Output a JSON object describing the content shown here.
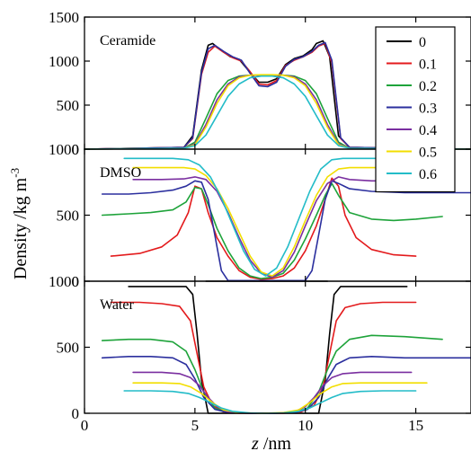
{
  "chart_data": {
    "type": "line",
    "xlabel_italic": "z",
    "xlabel_unit": " /nm",
    "ylabel": "Density /kg m",
    "ylabel_sup": "-3",
    "xlim": [
      0,
      17.5
    ],
    "xticks": [
      0,
      5,
      10,
      15
    ],
    "grid": false,
    "legend_position": "top-right",
    "legend": [
      {
        "label": "0",
        "color": "#000000"
      },
      {
        "label": "0.1",
        "color": "#e31a1c"
      },
      {
        "label": "0.2",
        "color": "#1ea33a"
      },
      {
        "label": "0.3",
        "color": "#2b2f9e"
      },
      {
        "label": "0.4",
        "color": "#7a2fa0"
      },
      {
        "label": "0.5",
        "color": "#f2de00"
      },
      {
        "label": "0.6",
        "color": "#23bcc8"
      }
    ],
    "panels": [
      {
        "label": "Ceramide",
        "ylim": [
          0,
          1500
        ],
        "yticks": [
          0,
          500,
          1000,
          1500
        ],
        "series": [
          {
            "name": "0",
            "x": [
              0,
              4.5,
              4.9,
              5.3,
              5.6,
              5.8,
              6.2,
              6.6,
              7.0,
              7.5,
              7.9,
              8.3,
              8.7,
              9.1,
              9.5,
              9.9,
              10.3,
              10.5,
              10.8,
              11.1,
              11.5,
              12.0,
              17.5
            ],
            "y": [
              0,
              20,
              150,
              900,
              1180,
              1200,
              1120,
              1050,
              1020,
              870,
              760,
              760,
              800,
              960,
              1030,
              1060,
              1130,
              1200,
              1230,
              1050,
              150,
              20,
              0
            ]
          },
          {
            "name": "0.1",
            "x": [
              0,
              4.5,
              4.9,
              5.3,
              5.6,
              5.9,
              6.3,
              6.7,
              7.1,
              7.5,
              7.9,
              8.3,
              8.7,
              9.1,
              9.5,
              9.9,
              10.3,
              10.6,
              10.9,
              11.2,
              11.6,
              12.0,
              17.5
            ],
            "y": [
              0,
              20,
              120,
              850,
              1100,
              1170,
              1100,
              1040,
              1000,
              880,
              740,
              730,
              780,
              950,
              1010,
              1050,
              1100,
              1170,
              1200,
              980,
              120,
              20,
              0
            ]
          },
          {
            "name": "0.2",
            "x": [
              0,
              4.5,
              5.0,
              5.5,
              6.0,
              6.5,
              7.0,
              7.5,
              8.0,
              8.5,
              9.0,
              9.5,
              10.0,
              10.5,
              11.0,
              11.5,
              12.0,
              17.5
            ],
            "y": [
              0,
              10,
              80,
              350,
              630,
              780,
              830,
              840,
              840,
              840,
              840,
              830,
              780,
              630,
              350,
              80,
              10,
              0
            ]
          },
          {
            "name": "0.3",
            "x": [
              0,
              4.5,
              4.9,
              5.3,
              5.6,
              5.9,
              6.3,
              6.7,
              7.1,
              7.5,
              7.9,
              8.3,
              8.7,
              9.1,
              9.5,
              9.9,
              10.3,
              10.6,
              10.9,
              11.2,
              11.6,
              12.0,
              17.5
            ],
            "y": [
              0,
              20,
              130,
              870,
              1140,
              1180,
              1110,
              1050,
              1010,
              860,
              720,
              710,
              760,
              940,
              1020,
              1050,
              1110,
              1180,
              1210,
              1010,
              130,
              20,
              0
            ]
          },
          {
            "name": "0.4",
            "x": [
              0,
              4.5,
              5.0,
              5.5,
              6.0,
              6.5,
              7.0,
              7.5,
              8.0,
              8.5,
              9.0,
              9.5,
              10.0,
              10.5,
              11.0,
              11.5,
              12.0,
              17.5
            ],
            "y": [
              0,
              10,
              60,
              280,
              560,
              740,
              820,
              840,
              840,
              840,
              840,
              820,
              740,
              560,
              280,
              60,
              10,
              0
            ]
          },
          {
            "name": "0.5",
            "x": [
              0,
              4.5,
              5.0,
              5.5,
              6.0,
              6.5,
              7.0,
              7.5,
              8.0,
              8.5,
              9.0,
              9.5,
              10.0,
              10.5,
              11.0,
              11.5,
              12.0,
              17.5
            ],
            "y": [
              0,
              10,
              50,
              250,
              520,
              720,
              810,
              840,
              845,
              845,
              840,
              810,
              720,
              520,
              250,
              50,
              10,
              0
            ]
          },
          {
            "name": "0.6",
            "x": [
              0,
              4.5,
              5.0,
              5.5,
              6.0,
              6.5,
              7.0,
              7.5,
              8.0,
              8.5,
              9.0,
              9.5,
              10.0,
              10.5,
              11.0,
              11.5,
              12.0,
              17.5
            ],
            "y": [
              0,
              10,
              40,
              160,
              380,
              600,
              740,
              810,
              830,
              830,
              810,
              740,
              600,
              380,
              160,
              40,
              10,
              0
            ]
          }
        ]
      },
      {
        "label": "DMSO",
        "ylim": [
          0,
          1000
        ],
        "yticks": [
          0,
          500,
          1000
        ],
        "series": [
          {
            "name": "0",
            "x": [
              5.5,
              11.0
            ],
            "y": [
              0,
              0
            ]
          },
          {
            "name": "0.1",
            "x": [
              1.2,
              2.5,
              3.5,
              4.2,
              4.7,
              5.0,
              5.3,
              5.6,
              6.0,
              6.5,
              7.0,
              7.5,
              8.0,
              8.5,
              9.0,
              9.5,
              10.0,
              10.5,
              10.9,
              11.2,
              11.5,
              11.8,
              12.3,
              13.0,
              14.0,
              15.0
            ],
            "y": [
              190,
              210,
              260,
              350,
              520,
              720,
              700,
              520,
              330,
              190,
              80,
              30,
              15,
              20,
              40,
              100,
              230,
              420,
              620,
              780,
              720,
              500,
              330,
              240,
              200,
              190
            ]
          },
          {
            "name": "0.2",
            "x": [
              0.8,
              2.0,
              3.0,
              4.0,
              4.6,
              5.0,
              5.3,
              5.6,
              6.0,
              6.5,
              7.0,
              7.5,
              8.0,
              8.5,
              9.0,
              9.5,
              10.0,
              10.5,
              10.9,
              11.2,
              11.5,
              12.0,
              13.0,
              14.0,
              15.0,
              16.2
            ],
            "y": [
              500,
              510,
              520,
              540,
              600,
              710,
              700,
              580,
              400,
              230,
              100,
              40,
              20,
              30,
              60,
              160,
              320,
              500,
              650,
              740,
              650,
              520,
              470,
              460,
              470,
              490
            ]
          },
          {
            "name": "0.3",
            "x": [
              0.8,
              2.0,
              3.0,
              4.0,
              4.6,
              5.0,
              5.3,
              5.6,
              5.9,
              6.2,
              6.5,
              10.0,
              10.3,
              10.6,
              10.9,
              11.2,
              11.5,
              12.0,
              13.0,
              14.5,
              16.0,
              17.5
            ],
            "y": [
              660,
              660,
              670,
              690,
              720,
              760,
              750,
              620,
              350,
              80,
              5,
              5,
              80,
              350,
              620,
              760,
              740,
              700,
              680,
              670,
              670,
              670
            ]
          },
          {
            "name": "0.4",
            "x": [
              2.2,
              3.5,
              4.5,
              5.0,
              5.5,
              6.0,
              6.5,
              7.0,
              7.5,
              8.0,
              8.5,
              9.0,
              9.5,
              10.0,
              10.5,
              11.0,
              11.5,
              12.0,
              13.0,
              14.8
            ],
            "y": [
              770,
              770,
              775,
              790,
              770,
              680,
              520,
              330,
              160,
              60,
              30,
              80,
              220,
              420,
              610,
              740,
              790,
              770,
              760,
              760
            ]
          },
          {
            "name": "0.5",
            "x": [
              2.2,
              3.5,
              4.5,
              5.0,
              5.5,
              6.0,
              6.5,
              7.0,
              7.5,
              8.0,
              8.5,
              9.0,
              9.5,
              10.0,
              10.5,
              11.0,
              11.5,
              12.0,
              13.0,
              15.5
            ],
            "y": [
              860,
              860,
              860,
              850,
              800,
              700,
              550,
              370,
              190,
              70,
              40,
              100,
              260,
              460,
              650,
              790,
              850,
              860,
              860,
              860
            ]
          },
          {
            "name": "0.6",
            "x": [
              1.8,
              3.0,
              4.0,
              4.7,
              5.2,
              5.7,
              6.2,
              6.7,
              7.2,
              7.7,
              8.2,
              8.7,
              9.2,
              9.7,
              10.2,
              10.7,
              11.2,
              11.7,
              12.5,
              13.5,
              15.0
            ],
            "y": [
              930,
              930,
              930,
              920,
              880,
              790,
              630,
              430,
              230,
              90,
              40,
              100,
              260,
              470,
              680,
              850,
              920,
              930,
              930,
              930,
              930
            ]
          }
        ]
      },
      {
        "label": "Water",
        "ylim": [
          0,
          1000
        ],
        "yticks": [
          0,
          500,
          1000
        ],
        "series": [
          {
            "name": "0",
            "x": [
              2.0,
              4.0,
              4.6,
              4.9,
              5.1,
              5.3,
              5.6,
              10.6,
              10.9,
              11.1,
              11.3,
              11.6,
              12.5,
              14.6
            ],
            "y": [
              960,
              960,
              960,
              900,
              600,
              250,
              0,
              0,
              250,
              600,
              900,
              960,
              960,
              960
            ]
          },
          {
            "name": "0.1",
            "x": [
              1.2,
              2.5,
              3.5,
              4.3,
              4.8,
              5.1,
              5.4,
              5.8,
              6.3,
              7.0,
              8.0,
              9.0,
              9.8,
              10.4,
              10.8,
              11.1,
              11.4,
              11.8,
              12.5,
              13.5,
              15.0
            ],
            "y": [
              840,
              840,
              830,
              810,
              700,
              450,
              200,
              60,
              10,
              0,
              0,
              0,
              10,
              60,
              200,
              450,
              700,
              800,
              830,
              840,
              840
            ]
          },
          {
            "name": "0.2",
            "x": [
              0.8,
              2.0,
              3.0,
              4.0,
              4.6,
              5.0,
              5.4,
              5.9,
              6.5,
              7.5,
              8.5,
              9.5,
              10.1,
              10.6,
              11.0,
              11.4,
              12.0,
              13.0,
              14.5,
              16.2
            ],
            "y": [
              550,
              560,
              560,
              540,
              470,
              330,
              160,
              40,
              5,
              0,
              0,
              5,
              40,
              160,
              330,
              470,
              560,
              590,
              580,
              560
            ]
          },
          {
            "name": "0.3",
            "x": [
              0.8,
              2.0,
              3.0,
              4.0,
              4.6,
              5.0,
              5.4,
              5.9,
              6.5,
              7.5,
              8.5,
              9.5,
              10.1,
              10.6,
              11.0,
              11.4,
              12.0,
              13.0,
              14.5,
              16.0,
              17.5
            ],
            "y": [
              420,
              430,
              430,
              420,
              370,
              260,
              120,
              30,
              5,
              0,
              0,
              5,
              30,
              120,
              260,
              370,
              420,
              430,
              420,
              420,
              420
            ]
          },
          {
            "name": "0.4",
            "x": [
              2.2,
              3.5,
              4.3,
              4.8,
              5.2,
              5.6,
              6.0,
              6.5,
              7.5,
              8.5,
              9.5,
              10.0,
              10.4,
              10.8,
              11.2,
              11.7,
              12.5,
              14.8
            ],
            "y": [
              310,
              310,
              300,
              270,
              210,
              120,
              50,
              10,
              0,
              0,
              10,
              50,
              120,
              210,
              270,
              300,
              310,
              310
            ]
          },
          {
            "name": "0.5",
            "x": [
              2.2,
              3.5,
              4.3,
              4.8,
              5.3,
              5.8,
              6.3,
              7.0,
              8.0,
              9.0,
              9.7,
              10.2,
              10.7,
              11.2,
              11.7,
              12.5,
              15.5
            ],
            "y": [
              230,
              230,
              225,
              200,
              150,
              80,
              25,
              5,
              0,
              5,
              25,
              80,
              150,
              200,
              225,
              230,
              230
            ]
          },
          {
            "name": "0.6",
            "x": [
              1.8,
              3.0,
              4.0,
              4.7,
              5.2,
              5.7,
              6.2,
              6.7,
              7.5,
              8.2,
              9.0,
              9.7,
              10.2,
              10.7,
              11.2,
              11.7,
              12.5,
              13.5,
              15.0
            ],
            "y": [
              170,
              170,
              165,
              150,
              120,
              80,
              40,
              15,
              2,
              0,
              2,
              15,
              40,
              80,
              120,
              150,
              165,
              170,
              170
            ]
          }
        ]
      }
    ]
  }
}
